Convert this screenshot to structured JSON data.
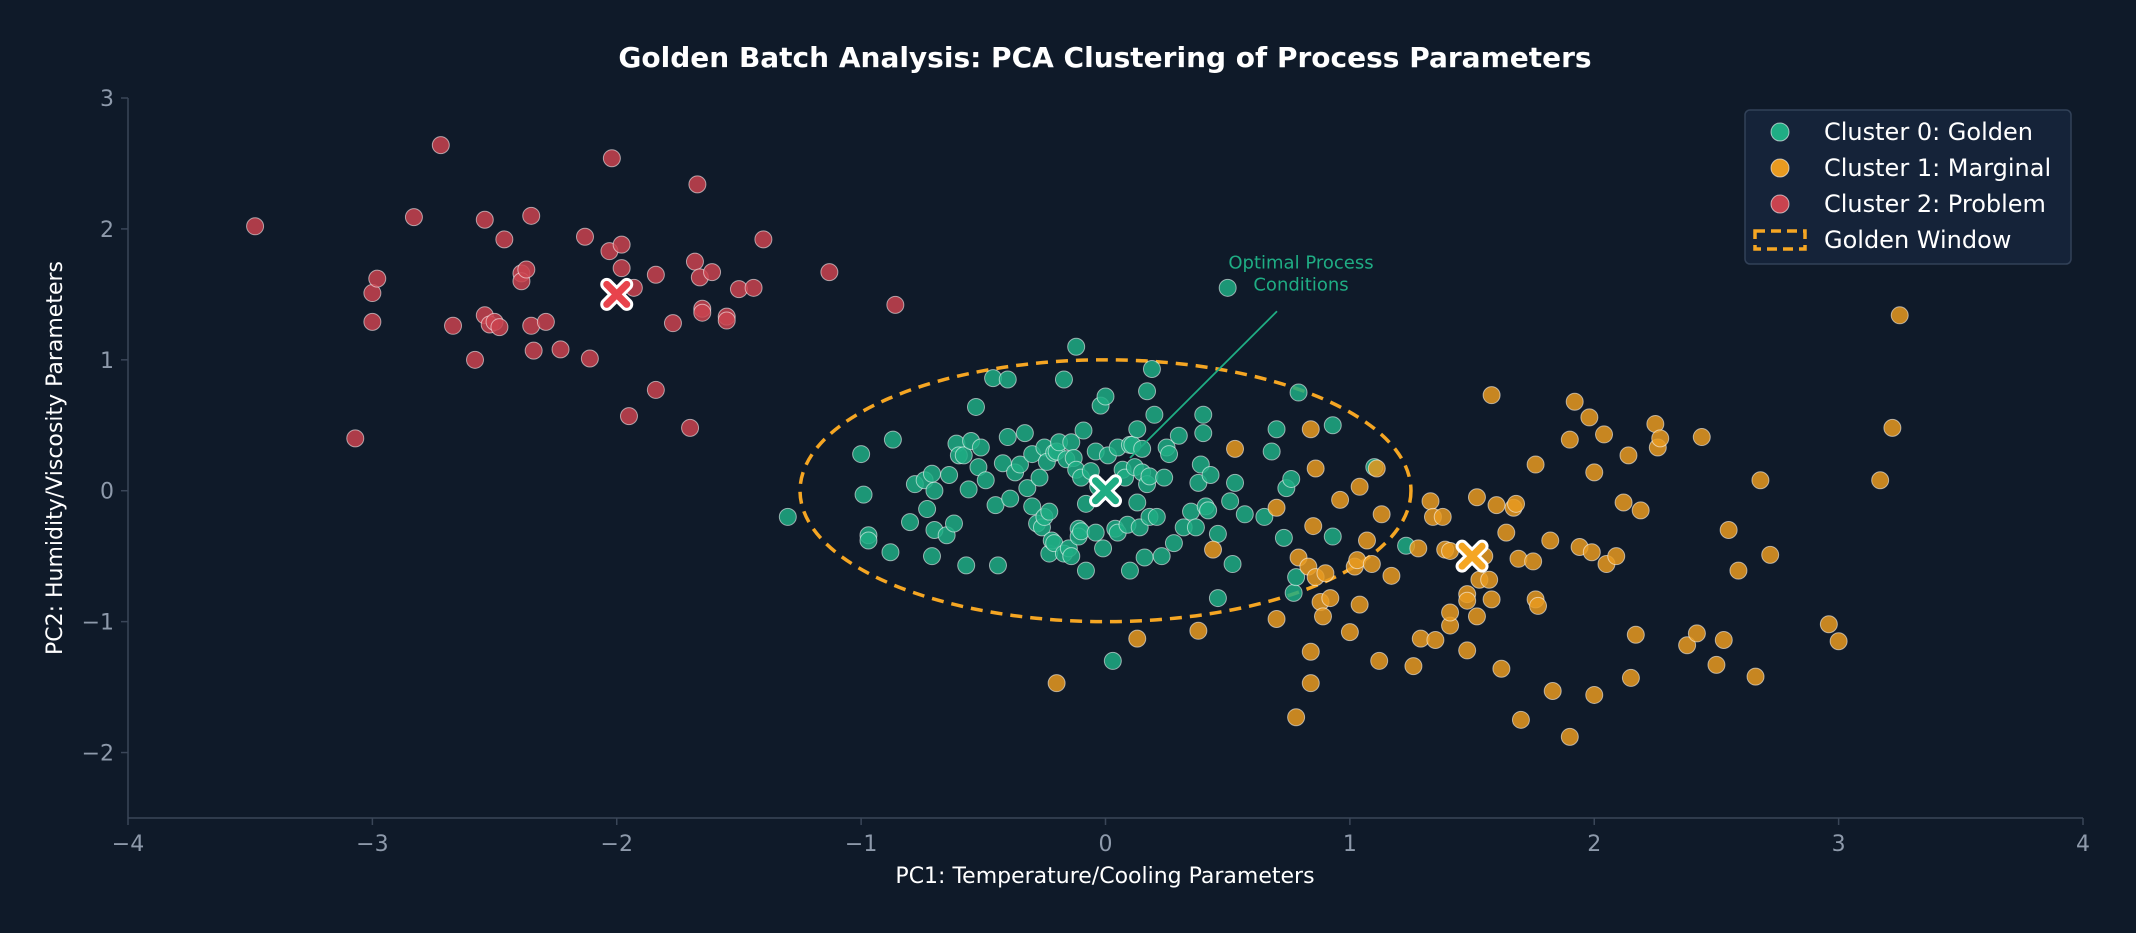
{
  "chart_data": {
    "type": "scatter",
    "title": "Golden Batch Analysis: PCA Clustering of Process Parameters",
    "xlabel": "PC1: Temperature/Cooling Parameters",
    "ylabel": "PC2: Humidity/Viscosity Parameters",
    "xlim": [
      -4,
      4
    ],
    "ylim": [
      -2.5,
      3
    ],
    "xticks": [
      -4,
      -3,
      -2,
      -1,
      0,
      1,
      2,
      3,
      4
    ],
    "xtick_labels": [
      "−4",
      "−3",
      "−2",
      "−1",
      "0",
      "1",
      "2",
      "3",
      "4"
    ],
    "yticks": [
      -2,
      -1,
      0,
      1,
      2,
      3
    ],
    "ytick_labels": [
      "−2",
      "−1",
      "0",
      "1",
      "2",
      "3"
    ],
    "legend_position": "top-right",
    "series": [
      {
        "name": "Cluster 0: Golden",
        "color": "#1fad84",
        "centroid": [
          0,
          0
        ],
        "points": [
          [
            -1.3,
            -0.2
          ],
          [
            -1.0,
            0.28
          ],
          [
            -0.99,
            -0.03
          ],
          [
            -0.97,
            -0.34
          ],
          [
            -0.97,
            -0.38
          ],
          [
            -0.88,
            -0.47
          ],
          [
            -0.87,
            0.39
          ],
          [
            -0.8,
            -0.24
          ],
          [
            -0.78,
            0.05
          ],
          [
            -0.74,
            0.08
          ],
          [
            -0.73,
            -0.14
          ],
          [
            -0.71,
            0.13
          ],
          [
            -0.71,
            -0.5
          ],
          [
            -0.7,
            0.0
          ],
          [
            -0.7,
            -0.3
          ],
          [
            -0.65,
            -0.34
          ],
          [
            -0.64,
            0.12
          ],
          [
            -0.62,
            -0.25
          ],
          [
            -0.61,
            0.36
          ],
          [
            -0.6,
            0.27
          ],
          [
            -0.58,
            0.27
          ],
          [
            -0.57,
            -0.57
          ],
          [
            -0.56,
            0.01
          ],
          [
            -0.55,
            0.38
          ],
          [
            -0.53,
            0.64
          ],
          [
            -0.52,
            0.18
          ],
          [
            -0.51,
            0.33
          ],
          [
            -0.49,
            0.08
          ],
          [
            -0.46,
            0.86
          ],
          [
            -0.45,
            -0.11
          ],
          [
            -0.44,
            -0.57
          ],
          [
            -0.42,
            0.21
          ],
          [
            -0.4,
            0.85
          ],
          [
            -0.4,
            0.41
          ],
          [
            -0.39,
            -0.06
          ],
          [
            -0.37,
            0.14
          ],
          [
            -0.35,
            0.2
          ],
          [
            -0.33,
            0.44
          ],
          [
            -0.32,
            0.02
          ],
          [
            -0.3,
            -0.12
          ],
          [
            -0.3,
            0.28
          ],
          [
            -0.28,
            -0.25
          ],
          [
            -0.27,
            0.1
          ],
          [
            -0.26,
            -0.28
          ],
          [
            -0.25,
            0.33
          ],
          [
            -0.25,
            -0.2
          ],
          [
            -0.24,
            0.22
          ],
          [
            -0.23,
            -0.16
          ],
          [
            -0.23,
            -0.48
          ],
          [
            -0.22,
            -0.38
          ],
          [
            -0.21,
            0.29
          ],
          [
            -0.21,
            -0.4
          ],
          [
            -0.2,
            0.3
          ],
          [
            -0.19,
            0.37
          ],
          [
            -0.17,
            -0.48
          ],
          [
            -0.17,
            0.85
          ],
          [
            -0.16,
            0.24
          ],
          [
            -0.15,
            -0.44
          ],
          [
            -0.14,
            -0.5
          ],
          [
            -0.14,
            0.37
          ],
          [
            -0.13,
            0.25
          ],
          [
            -0.12,
            1.1
          ],
          [
            -0.12,
            0.16
          ],
          [
            -0.11,
            -0.29
          ],
          [
            -0.11,
            -0.35
          ],
          [
            -0.1,
            -0.31
          ],
          [
            -0.1,
            0.1
          ],
          [
            -0.09,
            0.46
          ],
          [
            -0.08,
            -0.1
          ],
          [
            -0.08,
            -0.61
          ],
          [
            -0.06,
            0.15
          ],
          [
            -0.04,
            -0.32
          ],
          [
            -0.04,
            0.3
          ],
          [
            -0.03,
            0.03
          ],
          [
            -0.02,
            0.65
          ],
          [
            -0.01,
            -0.44
          ],
          [
            0.0,
            0.72
          ],
          [
            0.01,
            0.27
          ],
          [
            0.03,
            -1.3
          ],
          [
            0.04,
            -0.29
          ],
          [
            0.05,
            -0.32
          ],
          [
            0.05,
            0.33
          ],
          [
            0.07,
            0.16
          ],
          [
            0.08,
            0.1
          ],
          [
            0.09,
            -0.26
          ],
          [
            0.1,
            -0.61
          ],
          [
            0.1,
            0.35
          ],
          [
            0.11,
            0.35
          ],
          [
            0.12,
            0.18
          ],
          [
            0.13,
            0.47
          ],
          [
            0.13,
            -0.09
          ],
          [
            0.14,
            -0.28
          ],
          [
            0.15,
            0.14
          ],
          [
            0.15,
            0.32
          ],
          [
            0.16,
            -0.51
          ],
          [
            0.17,
            0.76
          ],
          [
            0.17,
            0.05
          ],
          [
            0.18,
            -0.2
          ],
          [
            0.18,
            0.11
          ],
          [
            0.19,
            0.93
          ],
          [
            0.2,
            0.58
          ],
          [
            0.21,
            -0.2
          ],
          [
            0.23,
            -0.5
          ],
          [
            0.24,
            0.1
          ],
          [
            0.25,
            0.33
          ],
          [
            0.26,
            0.28
          ],
          [
            0.28,
            -0.4
          ],
          [
            0.3,
            0.42
          ],
          [
            0.32,
            -0.28
          ],
          [
            0.35,
            -0.16
          ],
          [
            0.37,
            -0.28
          ],
          [
            0.38,
            0.06
          ],
          [
            0.39,
            0.2
          ],
          [
            0.4,
            0.58
          ],
          [
            0.4,
            0.44
          ],
          [
            0.41,
            -0.12
          ],
          [
            0.42,
            -0.15
          ],
          [
            0.43,
            0.12
          ],
          [
            0.46,
            -0.33
          ],
          [
            0.46,
            -0.82
          ],
          [
            0.5,
            1.55
          ],
          [
            0.51,
            -0.08
          ],
          [
            0.52,
            -0.56
          ],
          [
            0.53,
            0.06
          ],
          [
            0.57,
            -0.18
          ],
          [
            0.65,
            -0.2
          ],
          [
            0.68,
            0.3
          ],
          [
            0.7,
            0.47
          ],
          [
            0.73,
            -0.36
          ],
          [
            0.74,
            0.02
          ],
          [
            0.76,
            0.09
          ],
          [
            0.77,
            -0.78
          ],
          [
            0.78,
            -0.66
          ],
          [
            0.79,
            0.75
          ],
          [
            0.93,
            0.5
          ],
          [
            0.93,
            -0.35
          ],
          [
            1.1,
            0.18
          ],
          [
            1.23,
            -0.42
          ]
        ]
      },
      {
        "name": "Cluster 1: Marginal",
        "color": "#e89a20",
        "centroid": [
          1.5,
          -0.5
        ],
        "points": [
          [
            -0.2,
            -1.47
          ],
          [
            0.13,
            -1.13
          ],
          [
            0.38,
            -1.07
          ],
          [
            0.44,
            -0.45
          ],
          [
            0.53,
            0.32
          ],
          [
            0.7,
            -0.98
          ],
          [
            0.7,
            -0.13
          ],
          [
            0.78,
            -1.73
          ],
          [
            0.79,
            -0.51
          ],
          [
            0.83,
            -0.58
          ],
          [
            0.84,
            0.47
          ],
          [
            0.84,
            -1.47
          ],
          [
            0.84,
            -1.23
          ],
          [
            0.85,
            -0.27
          ],
          [
            0.86,
            0.17
          ],
          [
            0.86,
            -0.66
          ],
          [
            0.88,
            -0.85
          ],
          [
            0.89,
            -0.96
          ],
          [
            0.9,
            -0.63
          ],
          [
            0.92,
            -0.82
          ],
          [
            0.96,
            -0.07
          ],
          [
            1.0,
            -1.08
          ],
          [
            1.02,
            -0.58
          ],
          [
            1.03,
            -0.53
          ],
          [
            1.04,
            0.03
          ],
          [
            1.04,
            -0.87
          ],
          [
            1.07,
            -0.38
          ],
          [
            1.09,
            -0.56
          ],
          [
            1.11,
            0.17
          ],
          [
            1.12,
            -1.3
          ],
          [
            1.13,
            -0.18
          ],
          [
            1.17,
            -0.65
          ],
          [
            1.26,
            -1.34
          ],
          [
            1.28,
            -0.44
          ],
          [
            1.29,
            -1.13
          ],
          [
            1.33,
            -0.08
          ],
          [
            1.34,
            -0.2
          ],
          [
            1.35,
            -1.14
          ],
          [
            1.38,
            -0.2
          ],
          [
            1.39,
            -0.45
          ],
          [
            1.41,
            -0.46
          ],
          [
            1.41,
            -1.03
          ],
          [
            1.41,
            -0.93
          ],
          [
            1.48,
            -0.79
          ],
          [
            1.48,
            -1.22
          ],
          [
            1.48,
            -0.84
          ],
          [
            1.52,
            -0.05
          ],
          [
            1.52,
            -0.96
          ],
          [
            1.53,
            -0.68
          ],
          [
            1.55,
            -0.5
          ],
          [
            1.57,
            -0.68
          ],
          [
            1.58,
            0.73
          ],
          [
            1.58,
            -0.83
          ],
          [
            1.6,
            -0.11
          ],
          [
            1.62,
            -1.36
          ],
          [
            1.64,
            -0.32
          ],
          [
            1.67,
            -0.13
          ],
          [
            1.68,
            -0.1
          ],
          [
            1.69,
            -0.52
          ],
          [
            1.7,
            -1.75
          ],
          [
            1.75,
            -0.54
          ],
          [
            1.76,
            -0.83
          ],
          [
            1.76,
            0.2
          ],
          [
            1.77,
            -0.88
          ],
          [
            1.82,
            -0.38
          ],
          [
            1.83,
            -1.53
          ],
          [
            1.9,
            0.39
          ],
          [
            1.9,
            -1.88
          ],
          [
            1.92,
            0.68
          ],
          [
            1.94,
            -0.43
          ],
          [
            1.98,
            0.56
          ],
          [
            1.99,
            -0.47
          ],
          [
            2.0,
            0.14
          ],
          [
            2.0,
            -1.56
          ],
          [
            2.04,
            0.43
          ],
          [
            2.05,
            -0.56
          ],
          [
            2.09,
            -0.5
          ],
          [
            2.12,
            -0.09
          ],
          [
            2.14,
            0.27
          ],
          [
            2.15,
            -1.43
          ],
          [
            2.17,
            -1.1
          ],
          [
            2.19,
            -0.15
          ],
          [
            2.25,
            0.51
          ],
          [
            2.26,
            0.33
          ],
          [
            2.27,
            0.4
          ],
          [
            2.38,
            -1.18
          ],
          [
            2.42,
            -1.09
          ],
          [
            2.44,
            0.41
          ],
          [
            2.5,
            -1.33
          ],
          [
            2.53,
            -1.14
          ],
          [
            2.55,
            -0.3
          ],
          [
            2.59,
            -0.61
          ],
          [
            2.66,
            -1.42
          ],
          [
            2.68,
            0.08
          ],
          [
            2.72,
            -0.49
          ],
          [
            2.96,
            -1.02
          ],
          [
            3.0,
            -1.15
          ],
          [
            3.17,
            0.08
          ],
          [
            3.22,
            0.48
          ],
          [
            3.25,
            1.34
          ]
        ]
      },
      {
        "name": "Cluster 2: Problem",
        "color": "#c9434f",
        "centroid": [
          -2,
          1.5
        ],
        "points": [
          [
            -3.48,
            2.02
          ],
          [
            -3.07,
            0.4
          ],
          [
            -3.0,
            1.29
          ],
          [
            -3.0,
            1.51
          ],
          [
            -2.98,
            1.62
          ],
          [
            -2.83,
            2.09
          ],
          [
            -2.72,
            2.64
          ],
          [
            -2.67,
            1.26
          ],
          [
            -2.58,
            1.0
          ],
          [
            -2.54,
            2.07
          ],
          [
            -2.54,
            1.34
          ],
          [
            -2.52,
            1.27
          ],
          [
            -2.5,
            1.29
          ],
          [
            -2.48,
            1.25
          ],
          [
            -2.46,
            1.92
          ],
          [
            -2.39,
            1.66
          ],
          [
            -2.39,
            1.6
          ],
          [
            -2.37,
            1.69
          ],
          [
            -2.35,
            2.1
          ],
          [
            -2.35,
            1.26
          ],
          [
            -2.34,
            1.07
          ],
          [
            -2.29,
            1.29
          ],
          [
            -2.23,
            1.08
          ],
          [
            -2.13,
            1.94
          ],
          [
            -2.11,
            1.01
          ],
          [
            -2.03,
            1.83
          ],
          [
            -2.02,
            2.54
          ],
          [
            -1.98,
            1.7
          ],
          [
            -1.98,
            1.88
          ],
          [
            -1.95,
            0.57
          ],
          [
            -1.93,
            1.55
          ],
          [
            -1.84,
            1.65
          ],
          [
            -1.84,
            0.77
          ],
          [
            -1.77,
            1.28
          ],
          [
            -1.7,
            0.48
          ],
          [
            -1.68,
            1.75
          ],
          [
            -1.67,
            2.34
          ],
          [
            -1.66,
            1.63
          ],
          [
            -1.65,
            1.39
          ],
          [
            -1.65,
            1.36
          ],
          [
            -1.61,
            1.67
          ],
          [
            -1.55,
            1.33
          ],
          [
            -1.55,
            1.3
          ],
          [
            -1.5,
            1.54
          ],
          [
            -1.44,
            1.55
          ],
          [
            -1.4,
            1.92
          ],
          [
            -1.13,
            1.67
          ],
          [
            -0.86,
            1.42
          ]
        ]
      }
    ],
    "golden_window": {
      "label": "Golden Window",
      "center": [
        0,
        0
      ],
      "x_radius": 1.25,
      "y_radius": 1.0,
      "color": "#f5a623"
    },
    "annotation": {
      "text_lines": [
        "Optimal Process",
        "Conditions"
      ],
      "target": [
        0.1,
        0.25
      ],
      "text_at": [
        0.8,
        1.6
      ],
      "color": "#1fad84"
    }
  }
}
